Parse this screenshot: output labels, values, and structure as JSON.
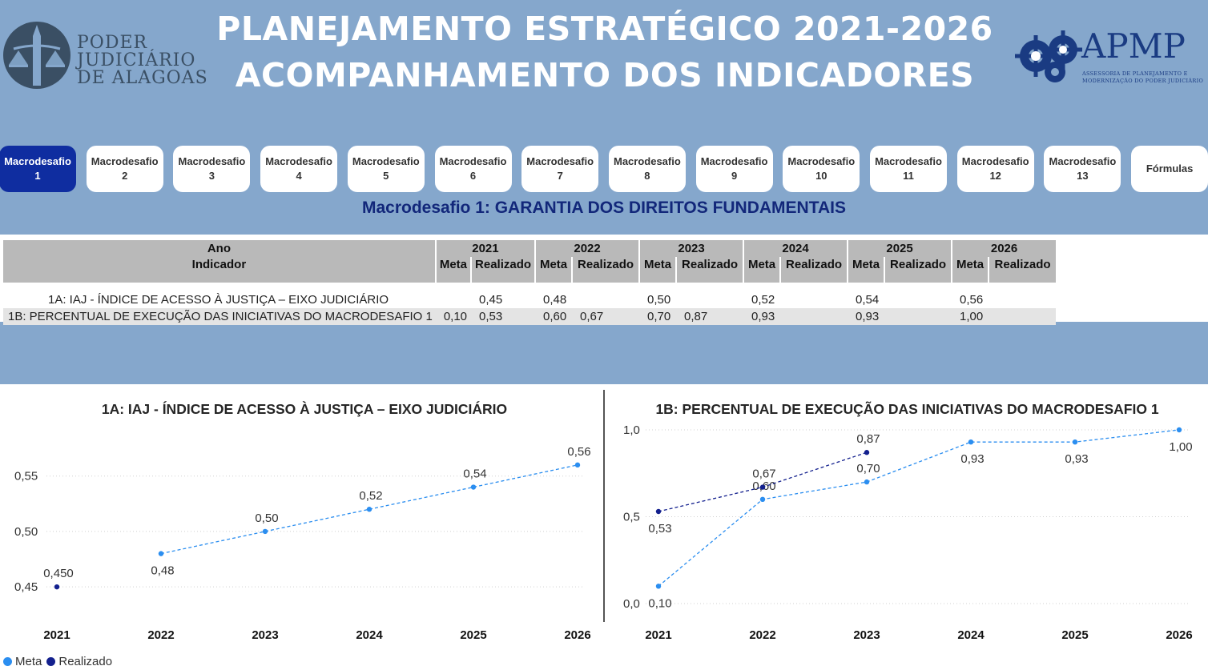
{
  "header": {
    "title_line1": "PLANEJAMENTO ESTRATÉGICO 2021-2026",
    "title_line2": "ACOMPANHAMENTO DOS INDICADORES",
    "logo_left": {
      "line1": "PODER",
      "line2": "JUDICIÁRIO",
      "line3": "DE ALAGOAS"
    },
    "logo_right": {
      "acronym": "APMP",
      "line1": "ASSESSORIA DE PLANEJAMENTO E",
      "line2": "MODERNIZAÇÃO DO PODER JUDICIÁRIO"
    }
  },
  "tabs": [
    {
      "line1": "Macrodesafio",
      "line2": "1",
      "active": true
    },
    {
      "line1": "Macrodesafio",
      "line2": "2"
    },
    {
      "line1": "Macrodesafio",
      "line2": "3"
    },
    {
      "line1": "Macrodesafio",
      "line2": "4"
    },
    {
      "line1": "Macrodesafio",
      "line2": "5"
    },
    {
      "line1": "Macrodesafio",
      "line2": "6"
    },
    {
      "line1": "Macrodesafio",
      "line2": "7"
    },
    {
      "line1": "Macrodesafio",
      "line2": "8"
    },
    {
      "line1": "Macrodesafio",
      "line2": "9"
    },
    {
      "line1": "Macrodesafio",
      "line2": "10"
    },
    {
      "line1": "Macrodesafio",
      "line2": "11"
    },
    {
      "line1": "Macrodesafio",
      "line2": "12"
    },
    {
      "line1": "Macrodesafio",
      "line2": "13"
    },
    {
      "line1": "Fórmulas",
      "line2": ""
    }
  ],
  "section_title": "Macrodesafio 1: GARANTIA DOS DIREITOS FUNDAMENTAIS",
  "table": {
    "year_header": "Ano",
    "indicator_header": "Indicador",
    "meta_label": "Meta",
    "realizado_label": "Realizado",
    "years": [
      "2021",
      "2022",
      "2023",
      "2024",
      "2025",
      "2026"
    ],
    "rows": [
      {
        "indicator": "1A: IAJ - ÍNDICE DE ACESSO À JUSTIÇA – EIXO JUDICIÁRIO",
        "cells": [
          "",
          "0,45",
          "0,48",
          "",
          "0,50",
          "",
          "0,52",
          "",
          "0,54",
          "",
          "0,56",
          ""
        ]
      },
      {
        "indicator": "1B: PERCENTUAL DE EXECUÇÃO DAS INICIATIVAS DO MACRODESAFIO 1",
        "cells": [
          "0,10",
          "0,53",
          "0,60",
          "0,67",
          "0,70",
          "0,87",
          "0,93",
          "",
          "0,93",
          "",
          "1,00",
          ""
        ]
      }
    ]
  },
  "legend": {
    "meta": "Meta",
    "realizado": "Realizado"
  },
  "colors": {
    "meta": "#2b8ef0",
    "realizado": "#13208e",
    "header_bg": "#85a7cc",
    "active_tab": "#0f2da0"
  },
  "chart_data": [
    {
      "type": "line",
      "title": "1A: IAJ - ÍNDICE DE ACESSO À JUSTIÇA – EIXO JUDICIÁRIO",
      "x": [
        "2021",
        "2022",
        "2023",
        "2024",
        "2025",
        "2026"
      ],
      "ylim": [
        0.44,
        0.57
      ],
      "yticks": [
        0.45,
        0.5,
        0.55
      ],
      "ytick_labels": [
        "0,45",
        "0,50",
        "0,55"
      ],
      "grid": true,
      "legend": "bottom-left",
      "series": [
        {
          "name": "Meta",
          "values": [
            null,
            0.48,
            0.5,
            0.52,
            0.54,
            0.56
          ],
          "labels": [
            "",
            "0,48",
            "0,50",
            "0,52",
            "0,54",
            "0,56"
          ],
          "label_pos": [
            "",
            "below",
            "above",
            "above",
            "above",
            "above"
          ]
        },
        {
          "name": "Realizado",
          "values": [
            0.45,
            null,
            null,
            null,
            null,
            null
          ],
          "labels": [
            "0,450",
            "",
            "",
            "",
            "",
            ""
          ],
          "label_pos": [
            "above",
            "",
            "",
            "",
            "",
            ""
          ]
        }
      ]
    },
    {
      "type": "line",
      "title": "1B: PERCENTUAL DE EXECUÇÃO DAS INICIATIVAS DO MACRODESAFIO 1",
      "x": [
        "2021",
        "2022",
        "2023",
        "2024",
        "2025",
        "2026"
      ],
      "ylim": [
        0.0,
        1.0
      ],
      "yticks": [
        0.0,
        0.5,
        1.0
      ],
      "ytick_labels": [
        "0,0",
        "0,5",
        "1,0"
      ],
      "grid": true,
      "series": [
        {
          "name": "Meta",
          "values": [
            0.1,
            0.6,
            0.7,
            0.93,
            0.93,
            1.0
          ],
          "labels": [
            "0,10",
            "0,60",
            "0,70",
            "0,93",
            "0,93",
            "1,00"
          ],
          "label_pos": [
            "below",
            "above",
            "above",
            "below",
            "below",
            "below"
          ]
        },
        {
          "name": "Realizado",
          "values": [
            0.53,
            0.67,
            0.87,
            null,
            null,
            null
          ],
          "labels": [
            "0,53",
            "0,67",
            "0,87",
            "",
            "",
            ""
          ],
          "label_pos": [
            "below",
            "above",
            "above",
            "",
            "",
            ""
          ]
        }
      ]
    }
  ]
}
